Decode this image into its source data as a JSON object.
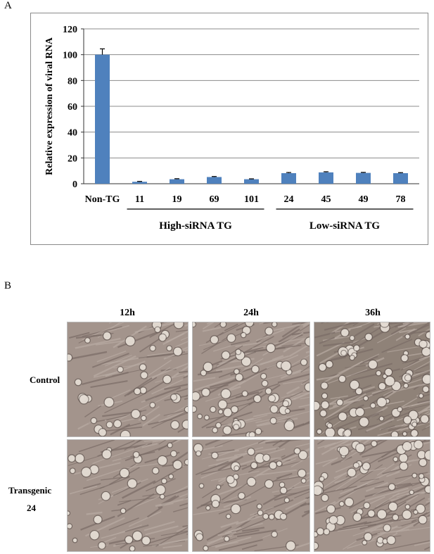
{
  "panel_a_label": "A",
  "panel_b_label": "B",
  "chart_data": {
    "type": "bar",
    "ylabel": "Relative expression of viral RNA",
    "xlabel": "",
    "ylim": [
      0,
      120
    ],
    "yticks": [
      0,
      20,
      40,
      60,
      80,
      100,
      120
    ],
    "grid": true,
    "categories": [
      "Non-TG",
      "11",
      "19",
      "69",
      "101",
      "24",
      "45",
      "49",
      "78"
    ],
    "values": [
      100,
      1.5,
      3.5,
      5.2,
      3.5,
      8.2,
      8.8,
      8.4,
      8.2
    ],
    "errors": [
      4.5,
      0.3,
      0.4,
      0.4,
      0.3,
      0.5,
      0.5,
      0.4,
      0.4
    ],
    "bar_color": "#4f81bd",
    "groups": [
      {
        "label": "High-siRNA TG",
        "from": "11",
        "to": "101"
      },
      {
        "label": "Low-siRNA TG",
        "from": "24",
        "to": "78"
      }
    ]
  },
  "micrographs": {
    "columns": [
      "12h",
      "24h",
      "36h"
    ],
    "rows": [
      {
        "label_lines": [
          "Control"
        ]
      },
      {
        "label_lines": [
          "Transgenic",
          "24"
        ]
      }
    ],
    "density": [
      [
        0.35,
        0.7,
        0.9
      ],
      [
        0.3,
        0.45,
        0.75
      ]
    ]
  }
}
